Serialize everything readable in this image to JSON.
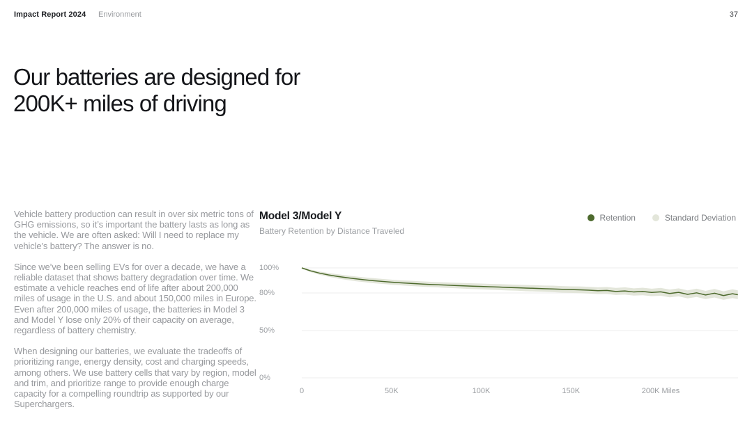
{
  "header": {
    "report_title": "Impact Report 2024",
    "section": "Environment",
    "page_number": "37"
  },
  "headline": "Our batteries are designed for 200K+ miles of driving",
  "paragraphs": [
    "Vehicle battery production can result in over six metric tons of GHG emissions, so it’s important the battery lasts as long as the vehicle. We are often asked: Will I need to replace my vehicle’s battery? The answer is no.",
    "Since we’ve been selling EVs for over a decade, we have a reliable dataset that shows battery degradation over time. We estimate a vehicle reaches end of life after about 200,000 miles of usage in the U.S. and about 150,000 miles in Europe. Even after 200,000 miles of usage, the batteries in Model 3 and Model Y lose only 20% of their capacity on average, regardless of battery chemistry.",
    "When designing our batteries, we evaluate the tradeoffs of prioritizing range, energy density, cost and charging speeds, among others. We use battery cells that vary by region, model and trim, and prioritize range to provide enough charge capacity for a compelling roundtrip as supported by our Superchargers."
  ],
  "colors": {
    "retention_line": "#4d6a2d",
    "std_deviation_band": "#e3e6da",
    "gridline": "#ececec",
    "text_primary": "#17191d",
    "text_secondary": "#97999d"
  },
  "chart_data": {
    "type": "line",
    "title": "Model 3/Model Y",
    "subtitle": "Battery Retention by Distance Traveled",
    "xlabel": "Miles",
    "ylabel": "Battery Retention",
    "x_units": "thousands of miles",
    "xlim": [
      0,
      243
    ],
    "ylim": [
      0,
      100
    ],
    "grid": "horizontal",
    "legend_position": "top-right",
    "y_axis_note": "non-linear tick spacing: range below 50% is visually compressed",
    "xticks": [
      {
        "value": 0,
        "label": "0"
      },
      {
        "value": 50,
        "label": "50K"
      },
      {
        "value": 100,
        "label": "100K"
      },
      {
        "value": 150,
        "label": "150K"
      },
      {
        "value": 200,
        "label": "200K Miles"
      }
    ],
    "yticks": [
      {
        "value": 100,
        "label": "100%"
      },
      {
        "value": 80,
        "label": "80%"
      },
      {
        "value": 50,
        "label": "50%"
      },
      {
        "value": 0,
        "label": "0%"
      }
    ],
    "series": [
      {
        "name": "Retention",
        "type": "line",
        "color": "#4d6a2d",
        "x": [
          0,
          5,
          10,
          15,
          20,
          25,
          30,
          35,
          40,
          45,
          50,
          55,
          60,
          65,
          70,
          75,
          80,
          85,
          90,
          95,
          100,
          105,
          110,
          115,
          120,
          125,
          130,
          135,
          140,
          145,
          150,
          155,
          160,
          165,
          170,
          175,
          180,
          185,
          190,
          195,
          200,
          205,
          210,
          215,
          220,
          225,
          230,
          235,
          240,
          243
        ],
        "y": [
          100,
          97.6,
          95.8,
          94.4,
          93.2,
          92.2,
          91.3,
          90.5,
          89.8,
          89.2,
          88.6,
          88.1,
          87.7,
          87.3,
          86.9,
          86.6,
          86.3,
          86.0,
          85.7,
          85.4,
          85.2,
          84.9,
          84.7,
          84.4,
          84.2,
          83.9,
          83.7,
          83.4,
          83.2,
          82.9,
          82.7,
          82.5,
          82.2,
          81.8,
          82.0,
          81.2,
          81.6,
          80.8,
          81.2,
          80.4,
          80.9,
          79.6,
          80.5,
          78.9,
          80.1,
          78.4,
          79.8,
          77.9,
          79.4,
          78.6
        ]
      },
      {
        "name": "Standard Deviation",
        "type": "band-around-retention",
        "color": "#e3e6da",
        "halfwidth": [
          0.7,
          1.0,
          1.3,
          1.5,
          1.7,
          1.8,
          1.9,
          1.9,
          2.0,
          2.0,
          2.0,
          2.0,
          2.1,
          2.1,
          2.1,
          2.1,
          2.2,
          2.2,
          2.2,
          2.3,
          2.3,
          2.3,
          2.4,
          2.4,
          2.4,
          2.5,
          2.5,
          2.5,
          2.6,
          2.6,
          2.6,
          2.7,
          2.7,
          2.7,
          2.8,
          2.8,
          2.9,
          2.9,
          3.0,
          3.0,
          3.1,
          3.1,
          3.2,
          3.2,
          3.3,
          3.3,
          3.4,
          3.4,
          3.5,
          3.5
        ]
      }
    ]
  }
}
